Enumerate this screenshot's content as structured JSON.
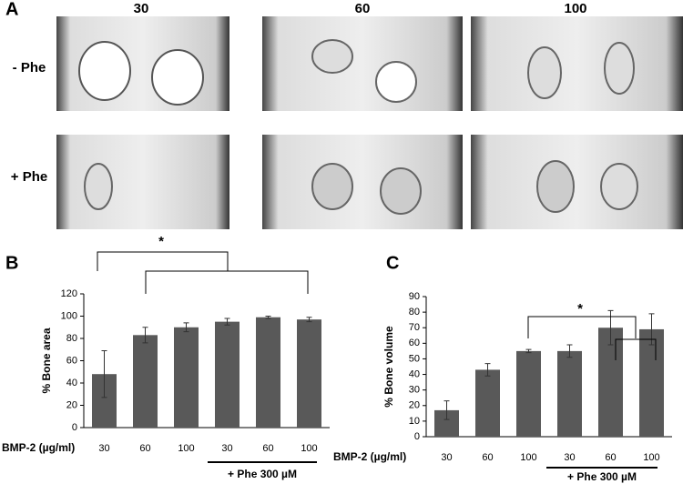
{
  "panel_a": {
    "letter": "A",
    "columns": [
      "30",
      "60",
      "100"
    ],
    "rows": [
      "- Phe",
      "+ Phe"
    ]
  },
  "chart_data": [
    {
      "type": "bar",
      "panel": "B",
      "ylabel": "% Bone area",
      "x_prefix": "BMP-2 (µg/ml)",
      "group_label": "+ Phe  300 µM",
      "significance": "*",
      "categories": [
        "30",
        "60",
        "100",
        "30",
        "60",
        "100"
      ],
      "values": [
        48,
        83,
        90,
        95,
        99,
        97
      ],
      "errors": [
        21,
        7,
        4,
        3,
        1,
        2
      ],
      "color": "#595959",
      "ylim": [
        0,
        120
      ],
      "yticks": [
        0,
        20,
        40,
        60,
        80,
        100,
        120
      ]
    },
    {
      "type": "bar",
      "panel": "C",
      "ylabel": "% Bone volume",
      "x_prefix": "BMP-2 (µg/ml)",
      "group_label": "+ Phe  300 µM",
      "significance": "*",
      "categories": [
        "30",
        "60",
        "100",
        "30",
        "60",
        "100"
      ],
      "values": [
        17,
        43,
        55,
        55,
        70,
        69
      ],
      "errors": [
        6,
        4,
        1,
        4,
        11,
        10
      ],
      "color": "#595959",
      "ylim": [
        0,
        90
      ],
      "yticks": [
        0,
        10,
        20,
        30,
        40,
        50,
        60,
        70,
        80,
        90
      ]
    }
  ]
}
